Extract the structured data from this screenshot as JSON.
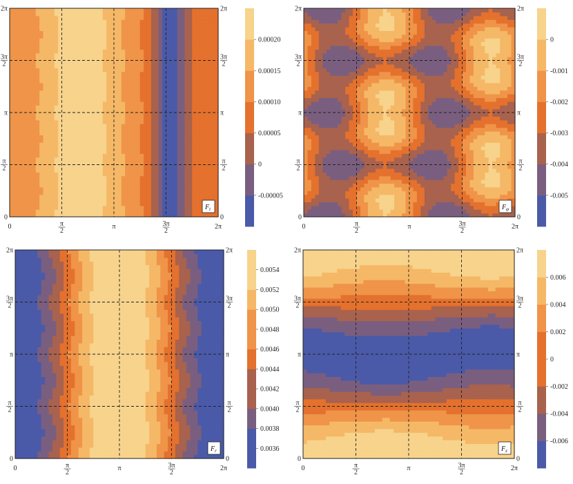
{
  "palette": [
    "#4a5aa8",
    "#7a5e7f",
    "#a8624e",
    "#e4712d",
    "#ef9448",
    "#f5b866",
    "#f7d38c"
  ],
  "axis_ticks": {
    "x": [
      "0",
      "π/2",
      "π",
      "3π/2",
      "2π"
    ],
    "y": [
      "0",
      "π/2",
      "π",
      "3π/2",
      "2π"
    ]
  },
  "chart_data": [
    {
      "type": "heatmap",
      "panel_label": "F",
      "panel_label_sub": "t",
      "x_range": [
        0,
        6.2832
      ],
      "y_range": [
        0,
        6.2832
      ],
      "field": "columns",
      "zlim": [
        -9e-05,
        0.00025
      ],
      "legend_levels": [
        "-0.00005",
        "0",
        "0.00005",
        "0.00010",
        "0.00015",
        "0.00020"
      ],
      "legend_values": [
        -5e-05,
        0,
        5e-05,
        0.0001,
        0.00015,
        0.0002
      ]
    },
    {
      "type": "heatmap",
      "panel_label": "F",
      "panel_label_sub": "φ",
      "x_range": [
        0,
        6.2832
      ],
      "y_range": [
        0,
        6.2832
      ],
      "field": "wells",
      "zlim": [
        -0.006,
        0.001
      ],
      "legend_levels": [
        "-0.005",
        "-0.004",
        "-0.003",
        "-0.002",
        "-0.001",
        "0"
      ],
      "legend_values": [
        -0.005,
        -0.004,
        -0.003,
        -0.002,
        -0.001,
        0
      ]
    },
    {
      "type": "heatmap",
      "panel_label": "F",
      "panel_label_sub": "r",
      "x_range": [
        0,
        6.2832
      ],
      "y_range": [
        0,
        6.2832
      ],
      "field": "bands",
      "zlim": [
        0.0035,
        0.0055
      ],
      "legend_levels": [
        "0.0036",
        "0.0038",
        "0.0040",
        "0.0042",
        "0.0044",
        "0.0046",
        "0.0048",
        "0.0050",
        "0.0052",
        "0.0054"
      ],
      "legend_values": [
        0.0036,
        0.0038,
        0.004,
        0.0042,
        0.0044,
        0.0046,
        0.0048,
        0.005,
        0.0052,
        0.0054
      ]
    },
    {
      "type": "heatmap",
      "panel_label": "F",
      "panel_label_sub": "z",
      "x_range": [
        0,
        6.2832
      ],
      "y_range": [
        0,
        6.2832
      ],
      "field": "horizontal",
      "zlim": [
        -0.0075,
        0.0075
      ],
      "legend_levels": [
        "-0.006",
        "-0.004",
        "-0.002",
        "0",
        "0.002",
        "0.004",
        "0.006"
      ],
      "legend_values": [
        -0.006,
        -0.004,
        -0.002,
        0,
        0.002,
        0.004,
        0.006
      ]
    }
  ]
}
